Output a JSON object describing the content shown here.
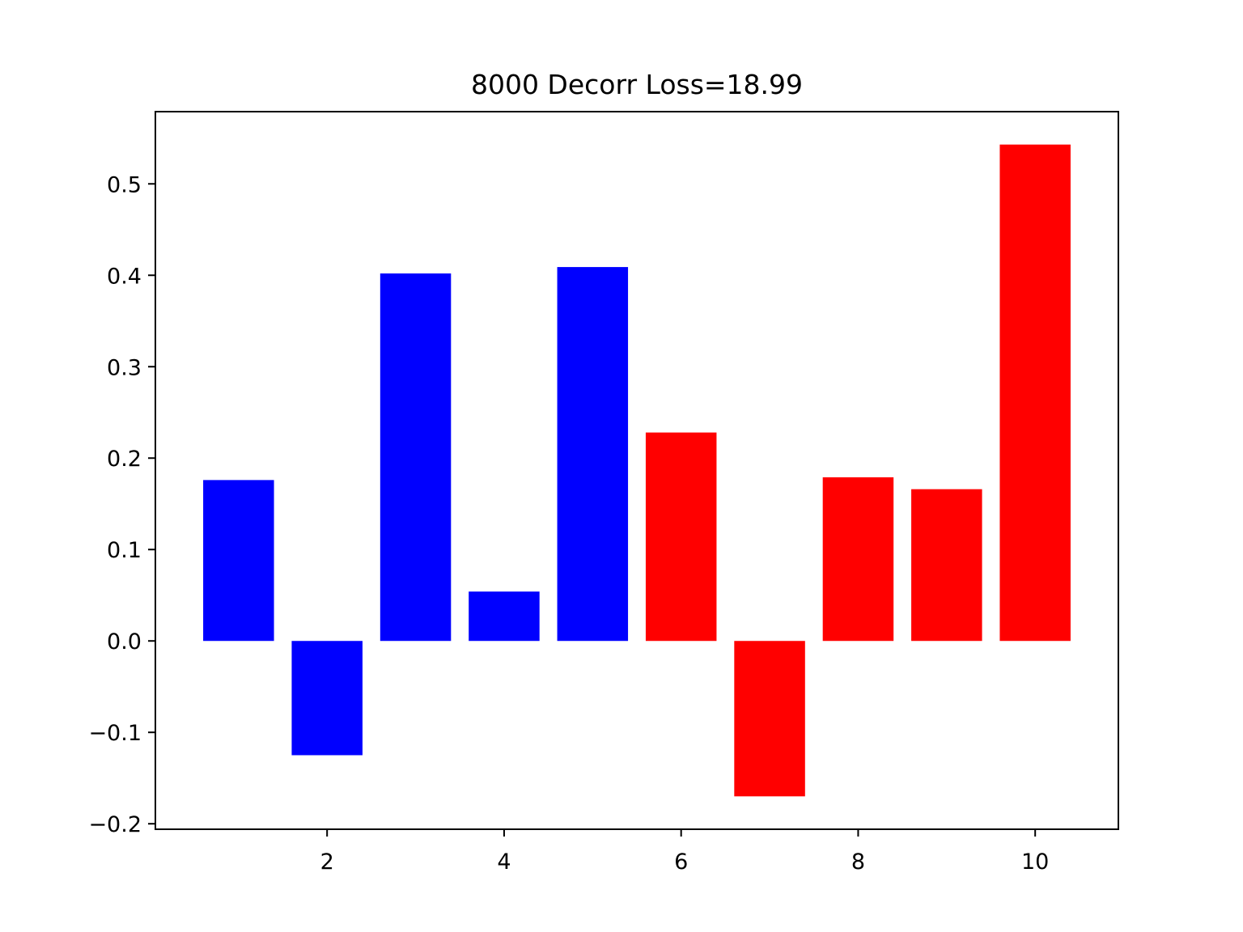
{
  "chart_data": {
    "type": "bar",
    "title": "8000 Decorr Loss=18.99",
    "xlabel": "",
    "ylabel": "",
    "x": [
      1,
      2,
      3,
      4,
      5,
      6,
      7,
      8,
      9,
      10
    ],
    "values": [
      0.176,
      -0.125,
      0.402,
      0.054,
      0.409,
      0.228,
      -0.17,
      0.179,
      0.166,
      0.543
    ],
    "bar_colors": [
      "#0000ff",
      "#0000ff",
      "#0000ff",
      "#0000ff",
      "#0000ff",
      "#ff0000",
      "#ff0000",
      "#ff0000",
      "#ff0000",
      "#ff0000"
    ],
    "bar_width": 0.8,
    "xlim": [
      0.06,
      10.94
    ],
    "ylim": [
      -0.206,
      0.579
    ],
    "xticks": [
      2,
      4,
      6,
      8,
      10
    ],
    "xtick_labels": [
      "2",
      "4",
      "6",
      "8",
      "10"
    ],
    "yticks": [
      -0.2,
      -0.1,
      0.0,
      0.1,
      0.2,
      0.3,
      0.4,
      0.5
    ],
    "ytick_labels": [
      "−0.2",
      "−0.1",
      "0.0",
      "0.1",
      "0.2",
      "0.3",
      "0.4",
      "0.5"
    ],
    "grid": false,
    "legend": "none"
  }
}
